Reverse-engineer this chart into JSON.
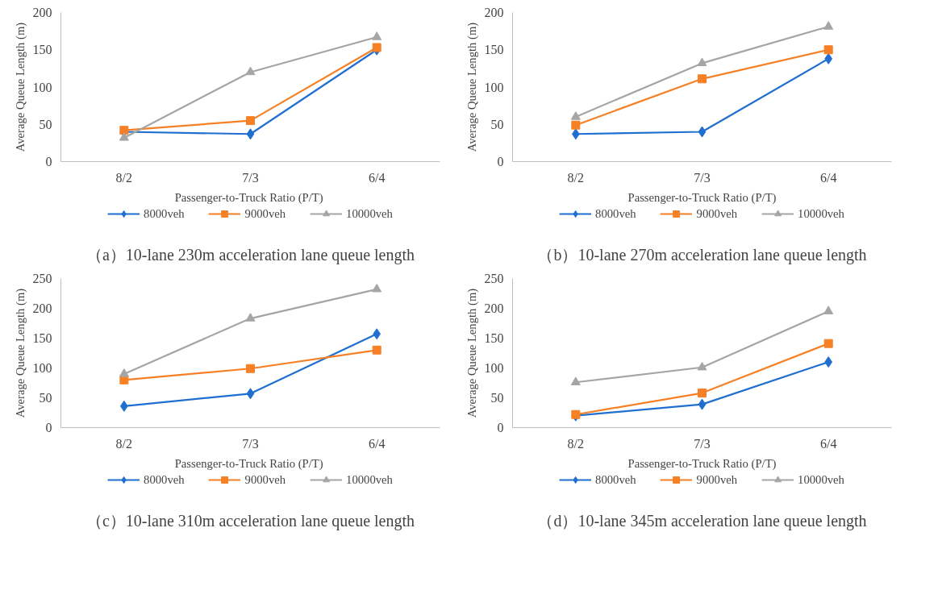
{
  "chart_data": [
    {
      "type": "line",
      "title": "（a）10-lane 230m acceleration lane queue length",
      "xlabel": "Passenger-to-Truck Ratio  (P/T)",
      "ylabel": "Average Queue Length (m)",
      "categories": [
        "8/2",
        "7/3",
        "6/4"
      ],
      "ylim": [
        0,
        200
      ],
      "yticks": [
        0,
        50,
        100,
        150,
        200
      ],
      "grid": false,
      "legend": "bottom",
      "series": [
        {
          "name": "8000veh",
          "color": "#1f6fd0",
          "marker": "diamond",
          "values": [
            40,
            37,
            150
          ]
        },
        {
          "name": "9000veh",
          "color": "#f58025",
          "marker": "square",
          "values": [
            42,
            55,
            153
          ]
        },
        {
          "name": "10000veh",
          "color": "#a5a5a5",
          "marker": "triangle",
          "values": [
            32,
            120,
            167
          ]
        }
      ]
    },
    {
      "type": "line",
      "title": "（b）10-lane 270m acceleration lane queue length",
      "xlabel": "Passenger-to-Truck Ratio (P/T)",
      "ylabel": "Average Queue Length (m)",
      "categories": [
        "8/2",
        "7/3",
        "6/4"
      ],
      "ylim": [
        0,
        200
      ],
      "yticks": [
        0,
        50,
        100,
        150,
        200
      ],
      "grid": false,
      "legend": "bottom",
      "series": [
        {
          "name": "8000veh",
          "color": "#1f6fd0",
          "marker": "diamond",
          "values": [
            37,
            40,
            138
          ]
        },
        {
          "name": "9000veh",
          "color": "#f58025",
          "marker": "square",
          "values": [
            49,
            111,
            150
          ]
        },
        {
          "name": "10000veh",
          "color": "#a5a5a5",
          "marker": "triangle",
          "values": [
            60,
            132,
            181
          ]
        }
      ]
    },
    {
      "type": "line",
      "title": "（c）10-lane 310m acceleration lane queue length",
      "xlabel": "Passenger-to-Truck Ratio  (P/T)",
      "ylabel": "Average Queue Length (m)",
      "categories": [
        "8/2",
        "7/3",
        "6/4"
      ],
      "ylim": [
        0,
        250
      ],
      "yticks": [
        0,
        50,
        100,
        150,
        200,
        250
      ],
      "grid": false,
      "legend": "bottom",
      "series": [
        {
          "name": "8000veh",
          "color": "#1f6fd0",
          "marker": "diamond",
          "values": [
            36,
            57,
            157
          ]
        },
        {
          "name": "9000veh",
          "color": "#f58025",
          "marker": "square",
          "values": [
            80,
            99,
            130
          ]
        },
        {
          "name": "10000veh",
          "color": "#a5a5a5",
          "marker": "triangle",
          "values": [
            90,
            183,
            232
          ]
        }
      ]
    },
    {
      "type": "line",
      "title": "（d）10-lane 345m acceleration lane queue length",
      "xlabel": "Passenger-to-Truck Ratio (P/T)",
      "ylabel": "Average Queue Length (m)",
      "categories": [
        "8/2",
        "7/3",
        "6/4"
      ],
      "ylim": [
        0,
        250
      ],
      "yticks": [
        0,
        50,
        100,
        150,
        200,
        250
      ],
      "grid": false,
      "legend": "bottom",
      "series": [
        {
          "name": "8000veh",
          "color": "#1f6fd0",
          "marker": "diamond",
          "values": [
            20,
            39,
            110
          ]
        },
        {
          "name": "9000veh",
          "color": "#f58025",
          "marker": "square",
          "values": [
            22,
            58,
            141
          ]
        },
        {
          "name": "10000veh",
          "color": "#a5a5a5",
          "marker": "triangle",
          "values": [
            76,
            101,
            195
          ]
        }
      ]
    }
  ]
}
